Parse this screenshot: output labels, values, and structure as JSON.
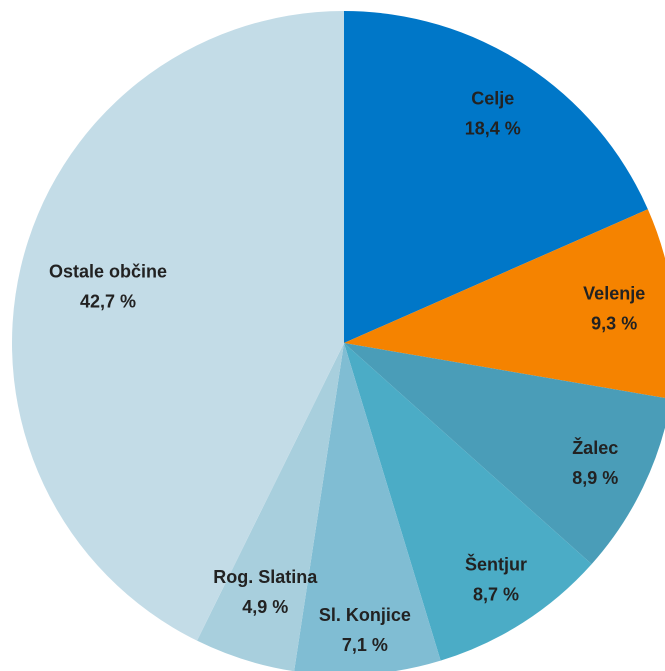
{
  "chart_data": {
    "type": "pie",
    "categories": [
      "Celje",
      "Velenje",
      "Žalec",
      "Šentjur",
      "Sl. Konjice",
      "Rog. Slatina",
      "Ostale občine"
    ],
    "values": [
      18.4,
      9.3,
      8.9,
      8.7,
      7.1,
      4.9,
      42.7
    ],
    "value_labels": [
      "18,4 %",
      "9,3 %",
      "8,9 %",
      "8,7 %",
      "7,1 %",
      "4,9 %",
      "42,7 %"
    ],
    "colors": [
      "#0077c8",
      "#f58300",
      "#4a9db8",
      "#4bacc6",
      "#80bdd3",
      "#a8cfdd",
      "#c3dce7"
    ]
  }
}
